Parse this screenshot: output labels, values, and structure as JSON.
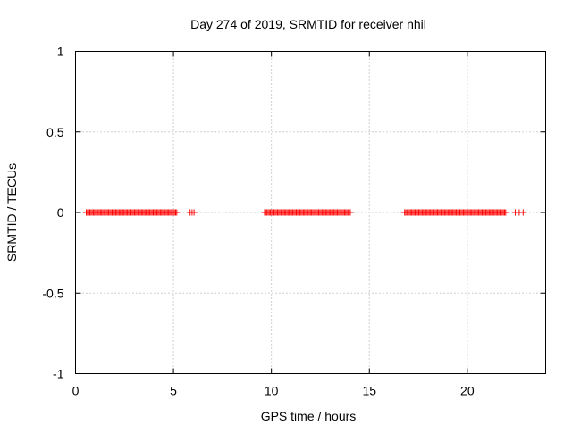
{
  "chart_data": {
    "type": "scatter",
    "title": "Day 274 of 2019, SRMTID for receiver nhil",
    "xlabel": "GPS time / hours",
    "ylabel": "SRMTID / TECUs",
    "xlim": [
      0,
      24
    ],
    "ylim": [
      -1,
      1
    ],
    "xticks": [
      0,
      5,
      10,
      15,
      20
    ],
    "xtick_labels": [
      "0",
      "5",
      "10",
      "15",
      "20"
    ],
    "yticks": [
      -1,
      -0.5,
      0,
      0.5,
      1
    ],
    "ytick_labels": [
      "-1",
      "-0.5",
      "0",
      "0.5",
      "1"
    ],
    "grid": true,
    "marker": "+",
    "series": [
      {
        "name": "SRMTID",
        "color": "#ff0000",
        "segments": [
          {
            "x_start": 0.55,
            "x_end": 5.15,
            "step": 0.06,
            "y": 0
          },
          {
            "x_start": 5.85,
            "x_end": 6.05,
            "step": 0.1,
            "y": 0
          },
          {
            "x_start": 9.65,
            "x_end": 14.05,
            "step": 0.06,
            "y": 0
          },
          {
            "x_start": 16.8,
            "x_end": 21.95,
            "step": 0.06,
            "y": 0
          },
          {
            "x_start": 22.45,
            "x_end": 22.85,
            "step": 0.2,
            "y": 0
          }
        ]
      }
    ]
  }
}
